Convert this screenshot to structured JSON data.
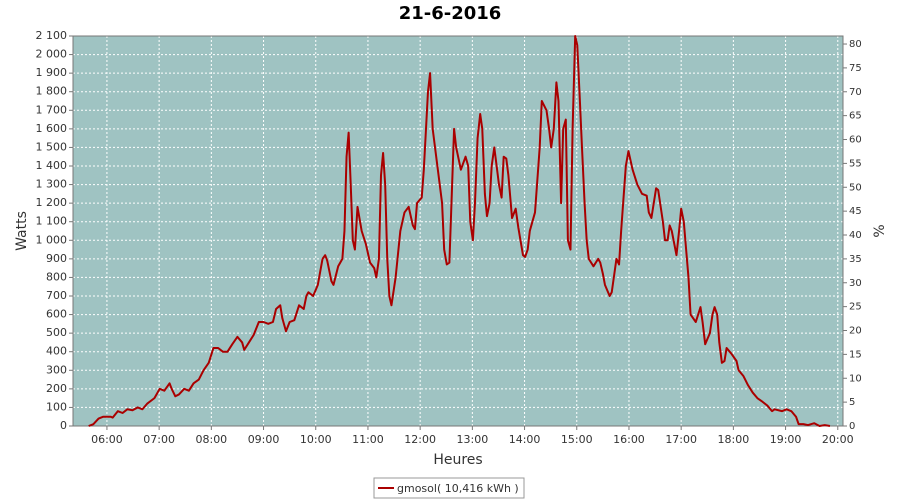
{
  "chart_data": {
    "type": "line",
    "title": "21-6-2016",
    "xlabel": "Heures",
    "ylabel": "Watts",
    "y2label": "%",
    "x": [
      5.65,
      5.74,
      5.84,
      5.93,
      6.07,
      6.11,
      6.21,
      6.3,
      6.39,
      6.49,
      6.59,
      6.68,
      6.77,
      6.91,
      7.01,
      7.1,
      7.2,
      7.24,
      7.31,
      7.38,
      7.48,
      7.57,
      7.66,
      7.76,
      7.85,
      7.95,
      8.04,
      8.13,
      8.22,
      8.31,
      8.4,
      8.5,
      8.59,
      8.63,
      8.72,
      8.81,
      8.91,
      9.0,
      9.09,
      9.18,
      9.24,
      9.32,
      9.36,
      9.43,
      9.5,
      9.59,
      9.68,
      9.77,
      9.82,
      9.86,
      9.95,
      10.04,
      10.13,
      10.18,
      10.22,
      10.3,
      10.34,
      10.43,
      10.51,
      10.55,
      10.59,
      10.63,
      10.67,
      10.71,
      10.75,
      10.8,
      10.88,
      10.96,
      11.04,
      11.12,
      11.16,
      11.21,
      11.25,
      11.29,
      11.33,
      11.37,
      11.41,
      11.45,
      11.53,
      11.62,
      11.7,
      11.78,
      11.86,
      11.9,
      11.94,
      12.03,
      12.07,
      12.15,
      12.19,
      12.24,
      12.33,
      12.42,
      12.46,
      12.51,
      12.56,
      12.6,
      12.65,
      12.69,
      12.78,
      12.87,
      12.92,
      12.96,
      13.01,
      13.05,
      13.1,
      13.15,
      13.19,
      13.24,
      13.28,
      13.33,
      13.37,
      13.42,
      13.51,
      13.56,
      13.6,
      13.65,
      13.69,
      13.76,
      13.83,
      13.88,
      13.97,
      14.01,
      14.06,
      14.1,
      14.2,
      14.29,
      14.33,
      14.42,
      14.47,
      14.51,
      14.56,
      14.61,
      14.65,
      14.7,
      14.74,
      14.79,
      14.83,
      14.88,
      14.92,
      14.97,
      15.01,
      15.06,
      15.1,
      15.15,
      15.19,
      15.23,
      15.32,
      15.41,
      15.45,
      15.5,
      15.54,
      15.63,
      15.67,
      15.72,
      15.76,
      15.81,
      15.85,
      15.94,
      15.99,
      16.07,
      16.16,
      16.25,
      16.34,
      16.38,
      16.43,
      16.52,
      16.56,
      16.65,
      16.69,
      16.74,
      16.78,
      16.82,
      16.91,
      16.96,
      17.0,
      17.05,
      17.14,
      17.18,
      17.28,
      17.37,
      17.41,
      17.46,
      17.55,
      17.6,
      17.64,
      17.69,
      17.73,
      17.78,
      17.83,
      17.87,
      17.96,
      18.06,
      18.1,
      18.19,
      18.28,
      18.37,
      18.46,
      18.56,
      18.65,
      18.74,
      18.79,
      18.93,
      19.02,
      19.11,
      19.2,
      19.25,
      19.34,
      19.43,
      19.55,
      19.65,
      19.75,
      19.85
    ],
    "series": [
      {
        "name": "gmosol( 10,416 kWh )",
        "color": "#aa0000",
        "values": [
          0,
          10,
          40,
          50,
          50,
          45,
          80,
          70,
          90,
          85,
          100,
          90,
          120,
          150,
          200,
          190,
          230,
          200,
          160,
          170,
          200,
          190,
          230,
          250,
          300,
          340,
          420,
          420,
          400,
          400,
          440,
          480,
          450,
          410,
          450,
          490,
          560,
          560,
          550,
          560,
          630,
          650,
          580,
          510,
          560,
          570,
          650,
          630,
          700,
          720,
          700,
          760,
          900,
          920,
          890,
          780,
          760,
          860,
          900,
          1050,
          1450,
          1580,
          1300,
          1000,
          950,
          1180,
          1050,
          980,
          880,
          850,
          800,
          900,
          1350,
          1470,
          1300,
          900,
          700,
          650,
          800,
          1050,
          1150,
          1180,
          1080,
          1060,
          1200,
          1230,
          1380,
          1800,
          1900,
          1600,
          1400,
          1200,
          950,
          870,
          880,
          1200,
          1600,
          1500,
          1380,
          1450,
          1400,
          1100,
          1000,
          1200,
          1550,
          1680,
          1600,
          1250,
          1130,
          1200,
          1400,
          1500,
          1300,
          1230,
          1450,
          1440,
          1350,
          1120,
          1170,
          1070,
          920,
          910,
          950,
          1050,
          1150,
          1500,
          1750,
          1700,
          1600,
          1500,
          1600,
          1850,
          1750,
          1200,
          1600,
          1650,
          1000,
          950,
          1600,
          2100,
          2050,
          1750,
          1500,
          1200,
          1000,
          900,
          860,
          900,
          880,
          820,
          760,
          700,
          720,
          820,
          900,
          870,
          1050,
          1400,
          1480,
          1380,
          1300,
          1250,
          1240,
          1150,
          1120,
          1280,
          1270,
          1100,
          1000,
          1000,
          1080,
          1050,
          920,
          1050,
          1170,
          1100,
          800,
          600,
          560,
          640,
          560,
          440,
          500,
          600,
          640,
          600,
          450,
          340,
          350,
          420,
          390,
          350,
          300,
          270,
          220,
          180,
          150,
          130,
          110,
          80,
          90,
          80,
          90,
          80,
          50,
          10,
          10,
          5,
          15,
          0,
          5,
          0
        ]
      }
    ],
    "xlim": [
      5.35,
      20.1
    ],
    "xticks": [
      {
        "value": 6,
        "label": "06:00"
      },
      {
        "value": 7,
        "label": "07:00"
      },
      {
        "value": 8,
        "label": "08:00"
      },
      {
        "value": 9,
        "label": "09:00"
      },
      {
        "value": 10,
        "label": "10:00"
      },
      {
        "value": 11,
        "label": "11:00"
      },
      {
        "value": 12,
        "label": "12:00"
      },
      {
        "value": 13,
        "label": "13:00"
      },
      {
        "value": 14,
        "label": "14:00"
      },
      {
        "value": 15,
        "label": "15:00"
      },
      {
        "value": 16,
        "label": "16:00"
      },
      {
        "value": 17,
        "label": "17:00"
      },
      {
        "value": 18,
        "label": "18:00"
      },
      {
        "value": 19,
        "label": "19:00"
      },
      {
        "value": 20,
        "label": "20:00"
      }
    ],
    "ylim": [
      0,
      2100
    ],
    "yticks": [
      0,
      100,
      200,
      300,
      400,
      500,
      600,
      700,
      800,
      900,
      {
        "value": 1000,
        "label": "1 000"
      },
      {
        "value": 1100,
        "label": "1 100"
      },
      {
        "value": 1200,
        "label": "1 200"
      },
      {
        "value": 1300,
        "label": "1 300"
      },
      {
        "value": 1400,
        "label": "1 400"
      },
      {
        "value": 1500,
        "label": "1 500"
      },
      {
        "value": 1600,
        "label": "1 600"
      },
      {
        "value": 1700,
        "label": "1 700"
      },
      {
        "value": 1800,
        "label": "1 800"
      },
      {
        "value": 1900,
        "label": "1 900"
      },
      {
        "value": 2000,
        "label": "2 000"
      },
      {
        "value": 2100,
        "label": "2 100"
      }
    ],
    "y2lim": [
      0,
      81.68
    ],
    "y2ticks": [
      0,
      5,
      10,
      15,
      20,
      25,
      30,
      35,
      40,
      45,
      50,
      55,
      60,
      65,
      70,
      75,
      80
    ],
    "grid": true,
    "background": "#9fc3c2",
    "legend": "bottom"
  }
}
